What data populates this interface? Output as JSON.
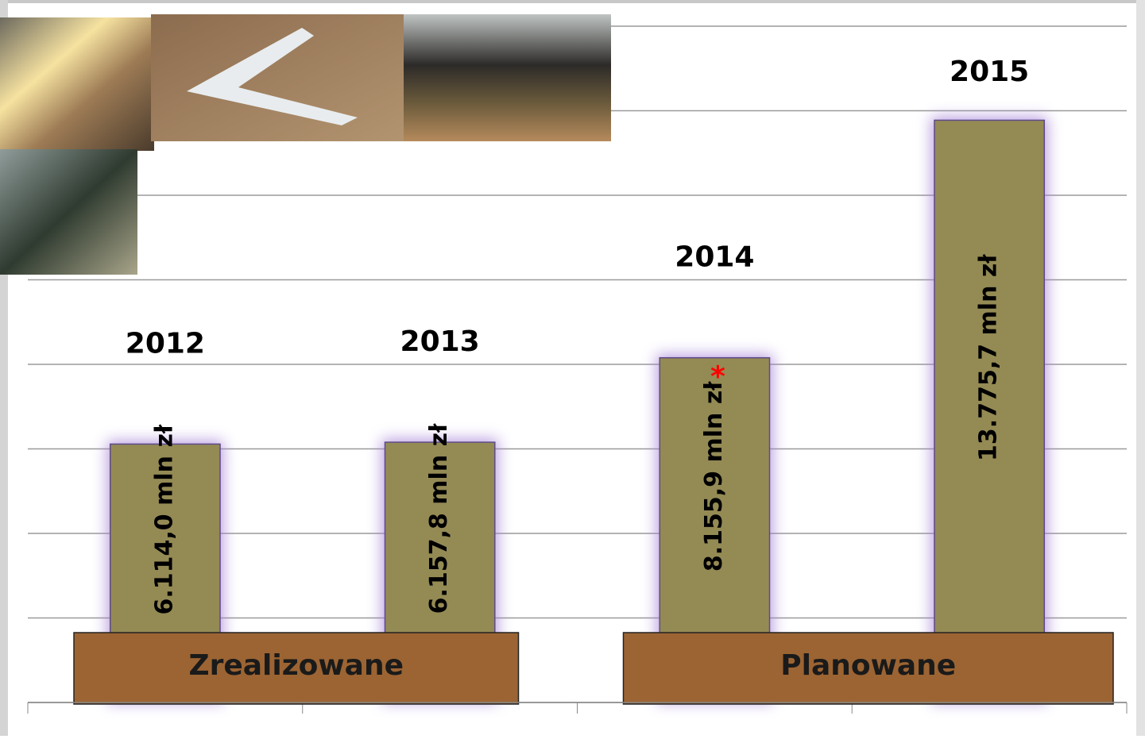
{
  "chart_data": {
    "type": "bar",
    "categories": [
      "2012",
      "2013",
      "2014",
      "2015"
    ],
    "values": [
      6114.0,
      6157.8,
      8155.9,
      13775.7
    ],
    "value_labels": [
      "6.114,0  mln zł",
      "6.157,8 mln zł",
      "8.155,9 mln zł",
      "13.775,7 mln zł"
    ],
    "color": "#948a54",
    "ylim": [
      0,
      16000
    ],
    "yticks": [
      0,
      2000,
      4000,
      6000,
      8000,
      10000,
      12000,
      14000,
      16000
    ],
    "grid": true,
    "annotations": [
      {
        "category": "2014",
        "text": "*",
        "color": "#ff0000"
      }
    ],
    "groups": [
      {
        "label": "Zrealizowane",
        "categories": [
          "2012",
          "2013"
        ],
        "color": "#9c6433"
      },
      {
        "label": "Planowane",
        "categories": [
          "2014",
          "2015"
        ],
        "color": "#9c6433"
      }
    ]
  }
}
